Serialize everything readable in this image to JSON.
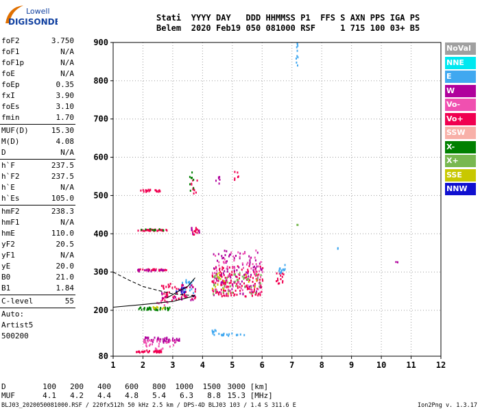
{
  "logo": {
    "line1": "Lowell",
    "line2": "DIGISONDE"
  },
  "header": {
    "labels": [
      "Stati",
      "YYYY",
      "DAY",
      "DDD",
      "HHMMSS",
      "P1",
      "FFS",
      "S",
      "AXN",
      "PPS",
      "IGA",
      "PS"
    ],
    "values": [
      "Belem",
      "2020",
      "Feb19",
      "050",
      "081000",
      "RSF",
      "",
      "1",
      "715",
      "100",
      "03+",
      "B5"
    ]
  },
  "params": [
    {
      "label": "foF2",
      "value": "3.750"
    },
    {
      "label": "foF1",
      "value": "N/A"
    },
    {
      "label": "foF1p",
      "value": "N/A"
    },
    {
      "label": "foE",
      "value": "N/A"
    },
    {
      "label": "foEp",
      "value": "0.35"
    },
    {
      "label": "fxI",
      "value": "3.90"
    },
    {
      "label": "foEs",
      "value": "3.10"
    },
    {
      "label": "fmin",
      "value": "1.70"
    },
    {
      "sep": true
    },
    {
      "label": "MUF(D)",
      "value": "15.30"
    },
    {
      "label": "M(D)",
      "value": "4.08"
    },
    {
      "label": "D",
      "value": "N/A"
    },
    {
      "sep": true
    },
    {
      "label": "h`F",
      "value": "237.5"
    },
    {
      "label": "h`F2",
      "value": "237.5"
    },
    {
      "label": "h`E",
      "value": "N/A"
    },
    {
      "label": "h`Es",
      "value": "105.0"
    },
    {
      "sep": true
    },
    {
      "label": "hmF2",
      "value": "238.3"
    },
    {
      "label": "hmF1",
      "value": "N/A"
    },
    {
      "label": "hmE",
      "value": "110.0"
    },
    {
      "label": "yF2",
      "value": "20.5"
    },
    {
      "label": "yF1",
      "value": "N/A"
    },
    {
      "label": "yE",
      "value": "20.0"
    },
    {
      "label": "B0",
      "value": "21.0"
    },
    {
      "label": "B1",
      "value": "1.84"
    },
    {
      "sep": true
    },
    {
      "label": "C-level",
      "value": "55"
    },
    {
      "sep": true
    }
  ],
  "auto": [
    "Auto:",
    "Artist5",
    "500200"
  ],
  "legend": [
    {
      "label": "NoVal",
      "color": "#a0a0a0"
    },
    {
      "label": "NNE",
      "color": "#00e8f0"
    },
    {
      "label": "E",
      "color": "#40a8f0"
    },
    {
      "label": "W",
      "color": "#b0009c"
    },
    {
      "label": "Vo-",
      "color": "#f050b0"
    },
    {
      "label": "Vo+",
      "color": "#f00050"
    },
    {
      "label": "SSW",
      "color": "#f8b0a8"
    },
    {
      "label": "X-",
      "color": "#008000"
    },
    {
      "label": "X+",
      "color": "#78b850"
    },
    {
      "label": "SSE",
      "color": "#c8c800"
    },
    {
      "label": "NNW",
      "color": "#1010d0"
    }
  ],
  "scale": {
    "d_label": "D",
    "d_values": [
      "100",
      "200",
      "400",
      "600",
      "800",
      "1000",
      "1500",
      "3000"
    ],
    "d_unit": "[km]",
    "muf_label": "MUF",
    "muf_values": [
      "4.1",
      "4.2",
      "4.4",
      "4.8",
      "5.4",
      "6.3",
      "8.8",
      "15.3"
    ],
    "muf_unit": "[MHz]"
  },
  "footer": "BLJ03_2020050081000.RSF / 220fx512h 50 kHz 2.5 km / DPS-4D BLJ03 103 / 1.4 S 311.6 E",
  "version": "Ion2Png v. 1.3.17",
  "chart_data": {
    "type": "scatter",
    "title": "",
    "xlabel": "",
    "ylabel": "",
    "xlim": [
      1,
      12
    ],
    "ylim": [
      80,
      900
    ],
    "x_ticks": [
      1,
      2,
      3,
      4,
      5,
      6,
      7,
      8,
      9,
      10,
      11,
      12
    ],
    "y_ticks": [
      80,
      200,
      300,
      400,
      500,
      600,
      700,
      800,
      900
    ],
    "grid": "dotted",
    "legend_position": "right",
    "traces": [
      {
        "name": "profile-solid",
        "style": "solid",
        "points": [
          [
            1.0,
            208
          ],
          [
            2.0,
            215
          ],
          [
            3.0,
            223
          ],
          [
            3.75,
            238
          ]
        ]
      },
      {
        "name": "profile-dashed",
        "style": "dashed",
        "points": [
          [
            1.0,
            300
          ],
          [
            1.5,
            280
          ],
          [
            2.0,
            262
          ],
          [
            2.5,
            252
          ],
          [
            3.0,
            243
          ],
          [
            3.75,
            238
          ]
        ]
      },
      {
        "name": "virtual-height",
        "style": "solid",
        "points": [
          [
            2.8,
            232
          ],
          [
            3.2,
            250
          ],
          [
            3.5,
            262
          ],
          [
            3.75,
            285
          ]
        ]
      }
    ],
    "clusters": [
      {
        "color": "#f00050",
        "x": [
          1.75,
          2.6
        ],
        "y": [
          92,
          98
        ],
        "n": 40
      },
      {
        "color": "#b0009c",
        "x": [
          2.0,
          3.2
        ],
        "y": [
          118,
          132
        ],
        "n": 50
      },
      {
        "color": "#f050b0",
        "x": [
          2.0,
          3.2
        ],
        "y": [
          100,
          125
        ],
        "n": 30
      },
      {
        "color": "#40a8f0",
        "x": [
          4.3,
          5.0
        ],
        "y": [
          136,
          142
        ],
        "n": 14
      },
      {
        "color": "#40a8f0",
        "x": [
          5.0,
          5.4
        ],
        "y": [
          136,
          140
        ],
        "n": 6
      },
      {
        "color": "#40a8f0",
        "x": [
          4.3,
          4.6
        ],
        "y": [
          146,
          152
        ],
        "n": 5
      },
      {
        "color": "#008000",
        "x": [
          1.8,
          2.9
        ],
        "y": [
          203,
          210
        ],
        "n": 35
      },
      {
        "color": "#c8c800",
        "x": [
          2.3,
          2.8
        ],
        "y": [
          205,
          212
        ],
        "n": 8
      },
      {
        "color": "#f050b0",
        "x": [
          2.4,
          2.9
        ],
        "y": [
          214,
          230
        ],
        "n": 10
      },
      {
        "color": "#f00050",
        "x": [
          2.6,
          3.75
        ],
        "y": [
          228,
          272
        ],
        "n": 55
      },
      {
        "color": "#b0009c",
        "x": [
          2.6,
          3.75
        ],
        "y": [
          228,
          270
        ],
        "n": 25
      },
      {
        "color": "#40a8f0",
        "x": [
          3.3,
          3.7
        ],
        "y": [
          245,
          290
        ],
        "n": 15
      },
      {
        "color": "#1010d0",
        "x": [
          3.1,
          3.4
        ],
        "y": [
          240,
          262
        ],
        "n": 8
      },
      {
        "color": "#f00050",
        "x": [
          4.3,
          6.0
        ],
        "y": [
          238,
          318
        ],
        "n": 160
      },
      {
        "color": "#b0009c",
        "x": [
          4.3,
          6.0
        ],
        "y": [
          242,
          360
        ],
        "n": 90
      },
      {
        "color": "#f050b0",
        "x": [
          4.3,
          6.0
        ],
        "y": [
          248,
          360
        ],
        "n": 70
      },
      {
        "color": "#78b850",
        "x": [
          4.3,
          6.0
        ],
        "y": [
          245,
          300
        ],
        "n": 40
      },
      {
        "color": "#c8c800",
        "x": [
          4.3,
          6.0
        ],
        "y": [
          245,
          300
        ],
        "n": 15
      },
      {
        "color": "#f00050",
        "x": [
          6.45,
          6.7
        ],
        "y": [
          270,
          300
        ],
        "n": 14
      },
      {
        "color": "#40a8f0",
        "x": [
          6.5,
          6.75
        ],
        "y": [
          300,
          322
        ],
        "n": 14
      },
      {
        "color": "#f00050",
        "x": [
          1.8,
          2.8
        ],
        "y": [
          306,
          310
        ],
        "n": 30
      },
      {
        "color": "#b0009c",
        "x": [
          1.8,
          2.7
        ],
        "y": [
          304,
          309
        ],
        "n": 18
      },
      {
        "color": "#f00050",
        "x": [
          1.8,
          2.8
        ],
        "y": [
          410,
          414
        ],
        "n": 35
      },
      {
        "color": "#008000",
        "x": [
          1.9,
          2.7
        ],
        "y": [
          411,
          415
        ],
        "n": 10
      },
      {
        "color": "#f00050",
        "x": [
          3.6,
          3.9
        ],
        "y": [
          400,
          418
        ],
        "n": 12
      },
      {
        "color": "#b0009c",
        "x": [
          3.6,
          3.9
        ],
        "y": [
          400,
          418
        ],
        "n": 8
      },
      {
        "color": "#f00050",
        "x": [
          1.9,
          2.6
        ],
        "y": [
          512,
          518
        ],
        "n": 20
      },
      {
        "color": "#f00050",
        "x": [
          3.6,
          3.8
        ],
        "y": [
          505,
          560
        ],
        "n": 10
      },
      {
        "color": "#b0009c",
        "x": [
          4.4,
          4.6
        ],
        "y": [
          530,
          555
        ],
        "n": 6
      },
      {
        "color": "#f00050",
        "x": [
          5.05,
          5.2
        ],
        "y": [
          540,
          565
        ],
        "n": 6
      },
      {
        "color": "#008000",
        "x": [
          3.55,
          3.7
        ],
        "y": [
          500,
          565
        ],
        "n": 8
      },
      {
        "color": "#40a8f0",
        "x": [
          7.12,
          7.18
        ],
        "y": [
          840,
          900
        ],
        "n": 10
      },
      {
        "color": "#40a8f0",
        "x": [
          8.5,
          8.55
        ],
        "y": [
          363,
          367
        ],
        "n": 2
      },
      {
        "color": "#b0009c",
        "x": [
          10.45,
          10.55
        ],
        "y": [
          328,
          331
        ],
        "n": 2
      },
      {
        "color": "#78b850",
        "x": [
          7.15,
          7.2
        ],
        "y": [
          423,
          426
        ],
        "n": 2
      }
    ]
  }
}
